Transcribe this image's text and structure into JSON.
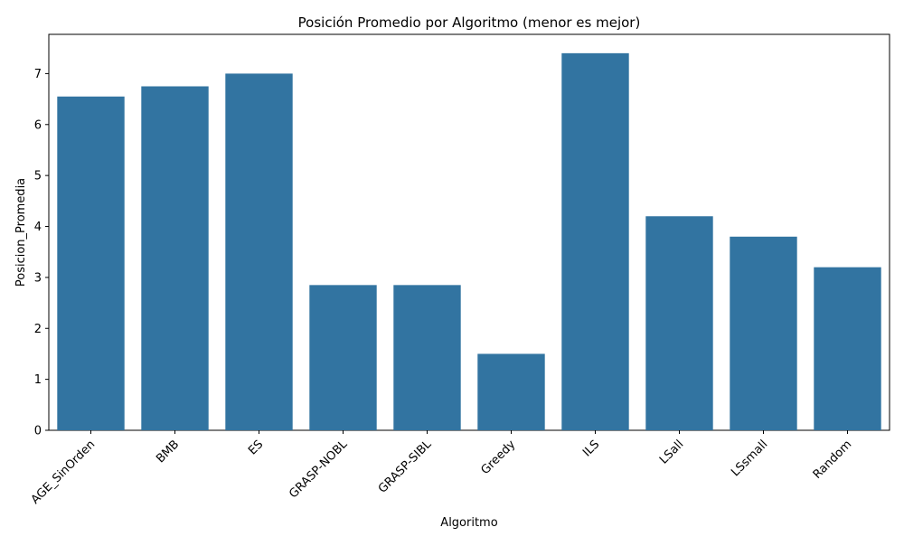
{
  "colors": {
    "bar": "#3274a1",
    "axis": "#000000",
    "background": "#ffffff"
  },
  "chart_data": {
    "type": "bar",
    "title": "Posición Promedio por Algoritmo (menor es mejor)",
    "xlabel": "Algoritmo",
    "ylabel": "Posicion_Promedia",
    "categories": [
      "AGE_SinOrden",
      "BMB",
      "ES",
      "GRASP-NOBL",
      "GRASP-SIBL",
      "Greedy",
      "ILS",
      "LSall",
      "LSsmall",
      "Random"
    ],
    "values": [
      6.55,
      6.75,
      7.0,
      2.85,
      2.85,
      1.5,
      7.4,
      4.2,
      3.8,
      3.2
    ],
    "ylim": [
      0,
      7.77
    ],
    "yticks": [
      0,
      1,
      2,
      3,
      4,
      5,
      6,
      7
    ],
    "xtick_rotation": 45,
    "grid": false,
    "legend": "none"
  }
}
